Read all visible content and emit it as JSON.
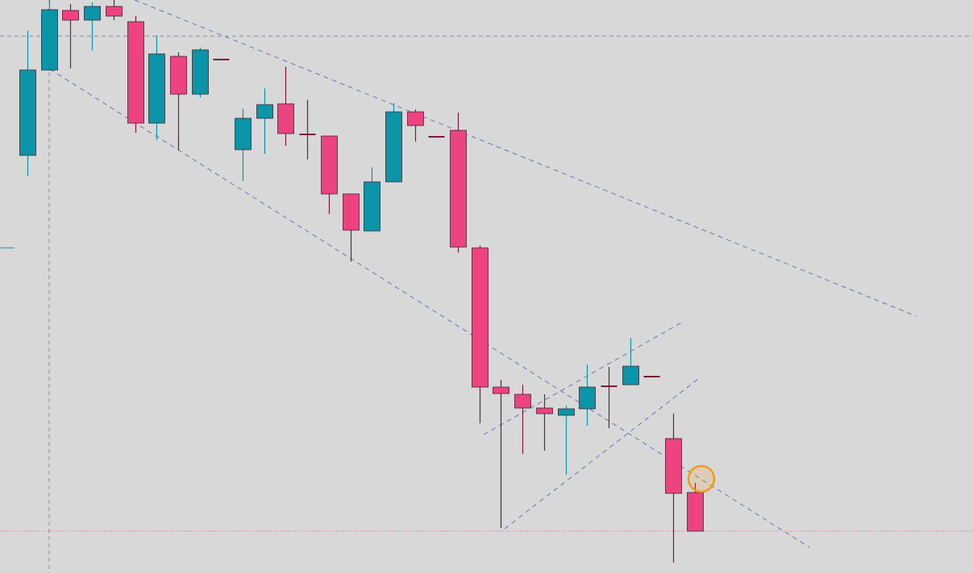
{
  "colors": {
    "background": "#d8d8d8",
    "bull": "#0a95a8",
    "bear": "#ee4381",
    "wick_bear": "#7a1a3e",
    "trendline": "#6d73b8",
    "crosshair": "#8c8c9a",
    "level_line": "#e0608a",
    "marker": "#f39a1a"
  },
  "chart_data": {
    "type": "candlestick",
    "grid": false,
    "legend": "none",
    "ylim": [
      0,
      712
    ],
    "candles": [
      {
        "o": 193,
        "h": 219,
        "l": 38,
        "c": 87
      },
      {
        "o": 87,
        "h": 88,
        "l": 0,
        "c": 12
      },
      {
        "o": 13,
        "h": 85,
        "l": 5,
        "c": 25
      },
      {
        "o": 25,
        "h": 63,
        "l": 3,
        "c": 8
      },
      {
        "o": 8,
        "h": 25,
        "l": 0,
        "c": 20
      },
      {
        "o": 27,
        "h": 165,
        "l": 20,
        "c": 153
      },
      {
        "o": 153,
        "h": 174,
        "l": 44,
        "c": 67
      },
      {
        "o": 70,
        "h": 187,
        "l": 65,
        "c": 117
      },
      {
        "o": 117,
        "h": 121,
        "l": 59,
        "c": 62
      },
      {
        "o": 74,
        "h": 74,
        "l": 74,
        "c": 74
      },
      {
        "o": 186,
        "h": 225,
        "l": 135,
        "c": 147
      },
      {
        "o": 147,
        "h": 191,
        "l": 110,
        "c": 130
      },
      {
        "o": 129,
        "h": 181,
        "l": 83,
        "c": 166
      },
      {
        "o": 167,
        "h": 198,
        "l": 124,
        "c": 167
      },
      {
        "o": 169,
        "h": 266,
        "l": 169,
        "c": 241
      },
      {
        "o": 241,
        "h": 325,
        "l": 241,
        "c": 286
      },
      {
        "o": 287,
        "h": 287,
        "l": 208,
        "c": 226
      },
      {
        "o": 226,
        "h": 226,
        "l": 128,
        "c": 139
      },
      {
        "o": 139,
        "h": 176,
        "l": 136,
        "c": 156
      },
      {
        "o": 170,
        "h": 170,
        "l": 170,
        "c": 170
      },
      {
        "o": 162,
        "h": 314,
        "l": 140,
        "c": 307
      },
      {
        "o": 308,
        "h": 526,
        "l": 305,
        "c": 481
      },
      {
        "o": 481,
        "h": 656,
        "l": 472,
        "c": 489
      },
      {
        "o": 490,
        "h": 564,
        "l": 478,
        "c": 507
      },
      {
        "o": 507,
        "h": 560,
        "l": 490,
        "c": 514
      },
      {
        "o": 516,
        "h": 590,
        "l": 504,
        "c": 508
      },
      {
        "o": 508,
        "h": 529,
        "l": 453,
        "c": 481
      },
      {
        "o": 480,
        "h": 532,
        "l": 456,
        "c": 480
      },
      {
        "o": 478,
        "h": 478,
        "l": 420,
        "c": 455
      },
      {
        "o": 468,
        "h": 468,
        "l": 468,
        "c": 468
      },
      {
        "o": 545,
        "h": 699,
        "l": 514,
        "c": 613
      },
      {
        "o": 612,
        "h": 660,
        "l": 600,
        "c": 660
      }
    ]
  }
}
